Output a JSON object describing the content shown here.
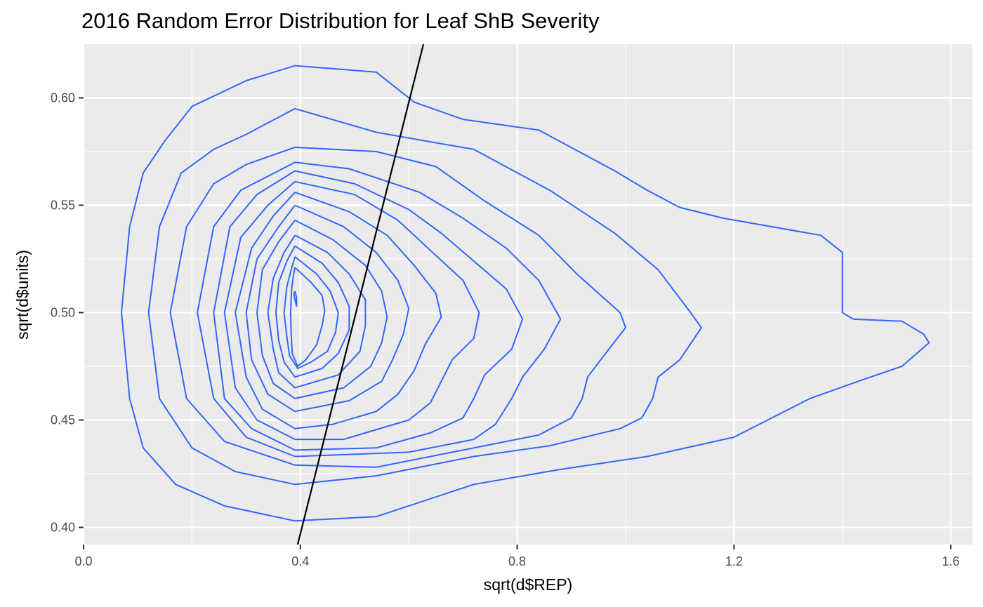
{
  "chart_data": {
    "type": "contour",
    "title": "2016 Random Error Distribution for Leaf ShB Severity",
    "xlabel": "sqrt(d$REP)",
    "ylabel": "sqrt(d$units)",
    "xlim": [
      0.0,
      1.64
    ],
    "ylim": [
      0.392,
      0.625
    ],
    "x_ticks": [
      0.0,
      0.4,
      0.8,
      1.2,
      1.6
    ],
    "x_tick_labels": [
      "0.0",
      "0.4",
      "0.8",
      "1.2",
      "1.6"
    ],
    "y_ticks": [
      0.4,
      0.45,
      0.5,
      0.55,
      0.6
    ],
    "y_tick_labels": [
      "0.40",
      "0.45",
      "0.50",
      "0.55",
      "0.60"
    ],
    "grid": true,
    "colors": {
      "panel": "#EBEBEB",
      "grid": "#FFFFFF",
      "contour": "#3366FF",
      "line": "#000000",
      "tick_text": "#4D4D4D"
    },
    "reference_line": {
      "points": [
        [
          0.395,
          0.392
        ],
        [
          0.627,
          0.625
        ]
      ]
    },
    "series": [
      {
        "points": [
          [
            0.39,
            0.615
          ],
          [
            0.54,
            0.612
          ],
          [
            0.61,
            0.598
          ],
          [
            0.7,
            0.59
          ],
          [
            0.84,
            0.585
          ],
          [
            0.98,
            0.566
          ],
          [
            1.04,
            0.557
          ],
          [
            1.1,
            0.549
          ],
          [
            1.18,
            0.544
          ],
          [
            1.36,
            0.536
          ],
          [
            1.4,
            0.528
          ],
          [
            1.4,
            0.515
          ],
          [
            1.4,
            0.5
          ],
          [
            1.42,
            0.497
          ],
          [
            1.51,
            0.496
          ],
          [
            1.55,
            0.49
          ],
          [
            1.56,
            0.486
          ],
          [
            1.51,
            0.475
          ],
          [
            1.44,
            0.469
          ],
          [
            1.34,
            0.46
          ],
          [
            1.2,
            0.442
          ],
          [
            1.04,
            0.433
          ],
          [
            0.88,
            0.427
          ],
          [
            0.72,
            0.42
          ],
          [
            0.54,
            0.405
          ],
          [
            0.39,
            0.403
          ],
          [
            0.26,
            0.41
          ],
          [
            0.17,
            0.42
          ],
          [
            0.11,
            0.437
          ],
          [
            0.085,
            0.46
          ],
          [
            0.07,
            0.5
          ],
          [
            0.085,
            0.54
          ],
          [
            0.11,
            0.565
          ],
          [
            0.15,
            0.58
          ],
          [
            0.2,
            0.596
          ],
          [
            0.3,
            0.608
          ],
          [
            0.39,
            0.615
          ]
        ]
      },
      {
        "points": [
          [
            0.39,
            0.595
          ],
          [
            0.54,
            0.584
          ],
          [
            0.72,
            0.576
          ],
          [
            0.86,
            0.557
          ],
          [
            0.98,
            0.537
          ],
          [
            1.06,
            0.52
          ],
          [
            1.12,
            0.5
          ],
          [
            1.14,
            0.493
          ],
          [
            1.1,
            0.478
          ],
          [
            1.06,
            0.47
          ],
          [
            1.05,
            0.46
          ],
          [
            1.03,
            0.451
          ],
          [
            0.99,
            0.446
          ],
          [
            0.86,
            0.438
          ],
          [
            0.72,
            0.433
          ],
          [
            0.54,
            0.424
          ],
          [
            0.39,
            0.42
          ],
          [
            0.28,
            0.426
          ],
          [
            0.2,
            0.437
          ],
          [
            0.14,
            0.46
          ],
          [
            0.12,
            0.5
          ],
          [
            0.14,
            0.54
          ],
          [
            0.18,
            0.565
          ],
          [
            0.24,
            0.576
          ],
          [
            0.3,
            0.583
          ],
          [
            0.39,
            0.595
          ]
        ]
      },
      {
        "points": [
          [
            0.39,
            0.577
          ],
          [
            0.54,
            0.575
          ],
          [
            0.65,
            0.568
          ],
          [
            0.74,
            0.552
          ],
          [
            0.84,
            0.536
          ],
          [
            0.91,
            0.518
          ],
          [
            0.99,
            0.5
          ],
          [
            1.0,
            0.493
          ],
          [
            0.96,
            0.48
          ],
          [
            0.93,
            0.47
          ],
          [
            0.92,
            0.46
          ],
          [
            0.9,
            0.451
          ],
          [
            0.84,
            0.443
          ],
          [
            0.72,
            0.437
          ],
          [
            0.54,
            0.428
          ],
          [
            0.39,
            0.429
          ],
          [
            0.26,
            0.44
          ],
          [
            0.19,
            0.46
          ],
          [
            0.16,
            0.5
          ],
          [
            0.19,
            0.54
          ],
          [
            0.24,
            0.56
          ],
          [
            0.3,
            0.569
          ],
          [
            0.39,
            0.577
          ]
        ]
      },
      {
        "points": [
          [
            0.39,
            0.57
          ],
          [
            0.49,
            0.567
          ],
          [
            0.62,
            0.556
          ],
          [
            0.7,
            0.544
          ],
          [
            0.78,
            0.53
          ],
          [
            0.84,
            0.515
          ],
          [
            0.88,
            0.497
          ],
          [
            0.85,
            0.483
          ],
          [
            0.81,
            0.47
          ],
          [
            0.79,
            0.46
          ],
          [
            0.76,
            0.448
          ],
          [
            0.72,
            0.441
          ],
          [
            0.6,
            0.435
          ],
          [
            0.39,
            0.433
          ],
          [
            0.3,
            0.442
          ],
          [
            0.24,
            0.46
          ],
          [
            0.21,
            0.5
          ],
          [
            0.24,
            0.54
          ],
          [
            0.29,
            0.557
          ],
          [
            0.39,
            0.57
          ]
        ]
      },
      {
        "points": [
          [
            0.39,
            0.566
          ],
          [
            0.5,
            0.56
          ],
          [
            0.6,
            0.548
          ],
          [
            0.66,
            0.537
          ],
          [
            0.72,
            0.524
          ],
          [
            0.78,
            0.511
          ],
          [
            0.81,
            0.497
          ],
          [
            0.79,
            0.483
          ],
          [
            0.74,
            0.471
          ],
          [
            0.72,
            0.46
          ],
          [
            0.7,
            0.451
          ],
          [
            0.64,
            0.444
          ],
          [
            0.54,
            0.437
          ],
          [
            0.39,
            0.436
          ],
          [
            0.31,
            0.446
          ],
          [
            0.26,
            0.46
          ],
          [
            0.24,
            0.5
          ],
          [
            0.27,
            0.54
          ],
          [
            0.32,
            0.555
          ],
          [
            0.39,
            0.566
          ]
        ]
      },
      {
        "points": [
          [
            0.39,
            0.561
          ],
          [
            0.5,
            0.555
          ],
          [
            0.58,
            0.543
          ],
          [
            0.64,
            0.529
          ],
          [
            0.7,
            0.515
          ],
          [
            0.73,
            0.5
          ],
          [
            0.72,
            0.488
          ],
          [
            0.68,
            0.478
          ],
          [
            0.66,
            0.468
          ],
          [
            0.64,
            0.458
          ],
          [
            0.6,
            0.45
          ],
          [
            0.48,
            0.441
          ],
          [
            0.39,
            0.441
          ],
          [
            0.32,
            0.45
          ],
          [
            0.28,
            0.465
          ],
          [
            0.26,
            0.5
          ],
          [
            0.29,
            0.535
          ],
          [
            0.34,
            0.55
          ],
          [
            0.39,
            0.561
          ]
        ]
      },
      {
        "points": [
          [
            0.39,
            0.556
          ],
          [
            0.49,
            0.547
          ],
          [
            0.56,
            0.536
          ],
          [
            0.61,
            0.522
          ],
          [
            0.65,
            0.509
          ],
          [
            0.66,
            0.498
          ],
          [
            0.63,
            0.485
          ],
          [
            0.61,
            0.473
          ],
          [
            0.58,
            0.462
          ],
          [
            0.54,
            0.454
          ],
          [
            0.46,
            0.448
          ],
          [
            0.39,
            0.446
          ],
          [
            0.33,
            0.455
          ],
          [
            0.3,
            0.47
          ],
          [
            0.28,
            0.5
          ],
          [
            0.31,
            0.53
          ],
          [
            0.35,
            0.545
          ],
          [
            0.39,
            0.556
          ]
        ]
      },
      {
        "points": [
          [
            0.39,
            0.55
          ],
          [
            0.48,
            0.54
          ],
          [
            0.54,
            0.528
          ],
          [
            0.58,
            0.515
          ],
          [
            0.6,
            0.502
          ],
          [
            0.59,
            0.49
          ],
          [
            0.57,
            0.478
          ],
          [
            0.55,
            0.468
          ],
          [
            0.49,
            0.459
          ],
          [
            0.39,
            0.454
          ],
          [
            0.34,
            0.462
          ],
          [
            0.31,
            0.478
          ],
          [
            0.3,
            0.5
          ],
          [
            0.32,
            0.525
          ],
          [
            0.36,
            0.54
          ],
          [
            0.39,
            0.55
          ]
        ]
      },
      {
        "points": [
          [
            0.39,
            0.543
          ],
          [
            0.46,
            0.534
          ],
          [
            0.52,
            0.522
          ],
          [
            0.55,
            0.51
          ],
          [
            0.56,
            0.498
          ],
          [
            0.55,
            0.486
          ],
          [
            0.53,
            0.475
          ],
          [
            0.48,
            0.465
          ],
          [
            0.39,
            0.46
          ],
          [
            0.35,
            0.467
          ],
          [
            0.33,
            0.48
          ],
          [
            0.32,
            0.5
          ],
          [
            0.33,
            0.52
          ],
          [
            0.36,
            0.533
          ],
          [
            0.39,
            0.543
          ]
        ]
      },
      {
        "points": [
          [
            0.39,
            0.536
          ],
          [
            0.45,
            0.528
          ],
          [
            0.49,
            0.518
          ],
          [
            0.52,
            0.506
          ],
          [
            0.52,
            0.494
          ],
          [
            0.51,
            0.482
          ],
          [
            0.47,
            0.471
          ],
          [
            0.39,
            0.465
          ],
          [
            0.36,
            0.472
          ],
          [
            0.35,
            0.483
          ],
          [
            0.34,
            0.5
          ],
          [
            0.35,
            0.516
          ],
          [
            0.37,
            0.528
          ],
          [
            0.39,
            0.536
          ]
        ]
      },
      {
        "points": [
          [
            0.39,
            0.531
          ],
          [
            0.44,
            0.523
          ],
          [
            0.47,
            0.514
          ],
          [
            0.49,
            0.503
          ],
          [
            0.49,
            0.492
          ],
          [
            0.47,
            0.481
          ],
          [
            0.44,
            0.474
          ],
          [
            0.39,
            0.47
          ],
          [
            0.37,
            0.477
          ],
          [
            0.36,
            0.487
          ],
          [
            0.355,
            0.5
          ],
          [
            0.36,
            0.514
          ],
          [
            0.375,
            0.524
          ],
          [
            0.39,
            0.531
          ]
        ]
      },
      {
        "points": [
          [
            0.39,
            0.526
          ],
          [
            0.43,
            0.518
          ],
          [
            0.455,
            0.51
          ],
          [
            0.47,
            0.5
          ],
          [
            0.465,
            0.491
          ],
          [
            0.45,
            0.482
          ],
          [
            0.42,
            0.477
          ],
          [
            0.395,
            0.474
          ],
          [
            0.38,
            0.48
          ],
          [
            0.375,
            0.489
          ],
          [
            0.37,
            0.5
          ],
          [
            0.375,
            0.512
          ],
          [
            0.383,
            0.52
          ],
          [
            0.39,
            0.526
          ]
        ]
      },
      {
        "points": [
          [
            0.39,
            0.521
          ],
          [
            0.42,
            0.514
          ],
          [
            0.44,
            0.508
          ],
          [
            0.445,
            0.501
          ],
          [
            0.44,
            0.494
          ],
          [
            0.43,
            0.485
          ],
          [
            0.41,
            0.478
          ],
          [
            0.395,
            0.475
          ],
          [
            0.385,
            0.481
          ],
          [
            0.383,
            0.49
          ],
          [
            0.382,
            0.5
          ],
          [
            0.384,
            0.511
          ],
          [
            0.387,
            0.517
          ],
          [
            0.39,
            0.521
          ]
        ]
      },
      {
        "points": [
          [
            0.39,
            0.51
          ],
          [
            0.393,
            0.507
          ],
          [
            0.393,
            0.503
          ],
          [
            0.39,
            0.506
          ],
          [
            0.388,
            0.509
          ],
          [
            0.39,
            0.51
          ]
        ]
      }
    ]
  }
}
